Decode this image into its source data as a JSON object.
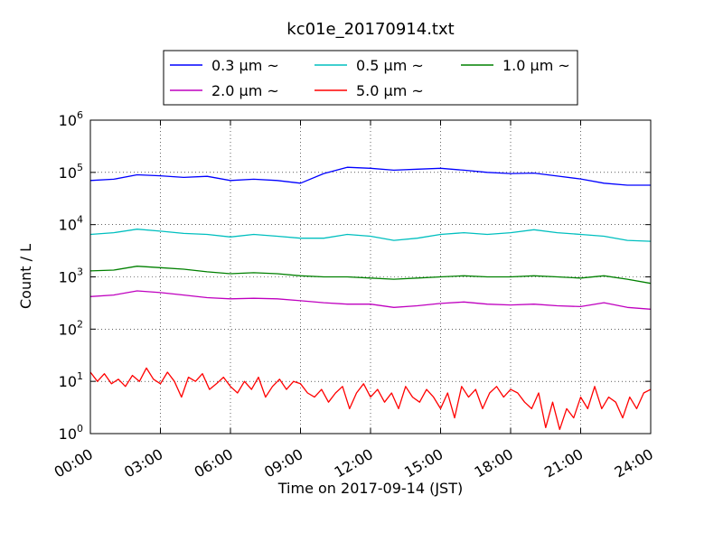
{
  "chart_data": {
    "type": "line",
    "title": "kc01e_20170914.txt",
    "xlabel": "Time on 2017-09-14 (JST)",
    "ylabel": "Count / L",
    "yscale": "log",
    "ylim": [
      1,
      1000000
    ],
    "xlim": [
      "00:00",
      "24:00"
    ],
    "grid": true,
    "legend_position": "top-center",
    "x_ticks": [
      "00:00",
      "03:00",
      "06:00",
      "09:00",
      "12:00",
      "15:00",
      "18:00",
      "21:00",
      "24:00"
    ],
    "y_ticks": [
      {
        "value": 1,
        "base": "10",
        "exp": "0"
      },
      {
        "value": 10,
        "base": "10",
        "exp": "1"
      },
      {
        "value": 100,
        "base": "10",
        "exp": "2"
      },
      {
        "value": 1000,
        "base": "10",
        "exp": "3"
      },
      {
        "value": 10000,
        "base": "10",
        "exp": "4"
      },
      {
        "value": 100000,
        "base": "10",
        "exp": "5"
      },
      {
        "value": 1000000,
        "base": "10",
        "exp": "6"
      }
    ],
    "series": [
      {
        "name": "0.3 μm ~",
        "color": "#0000ff",
        "points": [
          [
            0,
            70000
          ],
          [
            1,
            74000
          ],
          [
            2,
            90000
          ],
          [
            3,
            86000
          ],
          [
            4,
            80000
          ],
          [
            5,
            84000
          ],
          [
            6,
            70000
          ],
          [
            7,
            74000
          ],
          [
            8,
            70000
          ],
          [
            9,
            62000
          ],
          [
            10,
            95000
          ],
          [
            11,
            125000
          ],
          [
            12,
            120000
          ],
          [
            13,
            110000
          ],
          [
            14,
            115000
          ],
          [
            15,
            120000
          ],
          [
            16,
            110000
          ],
          [
            17,
            100000
          ],
          [
            18,
            95000
          ],
          [
            19,
            97000
          ],
          [
            20,
            85000
          ],
          [
            21,
            75000
          ],
          [
            22,
            62000
          ],
          [
            23,
            57000
          ],
          [
            24,
            57000
          ]
        ]
      },
      {
        "name": "0.5 μm ~",
        "color": "#00bfbf",
        "points": [
          [
            0,
            6500
          ],
          [
            1,
            7000
          ],
          [
            2,
            8200
          ],
          [
            3,
            7500
          ],
          [
            4,
            6800
          ],
          [
            5,
            6500
          ],
          [
            6,
            5800
          ],
          [
            7,
            6500
          ],
          [
            8,
            6000
          ],
          [
            9,
            5500
          ],
          [
            10,
            5500
          ],
          [
            11,
            6500
          ],
          [
            12,
            6000
          ],
          [
            13,
            5000
          ],
          [
            14,
            5500
          ],
          [
            15,
            6500
          ],
          [
            16,
            7000
          ],
          [
            17,
            6500
          ],
          [
            18,
            7000
          ],
          [
            19,
            8000
          ],
          [
            20,
            7000
          ],
          [
            21,
            6500
          ],
          [
            22,
            6000
          ],
          [
            23,
            5000
          ],
          [
            24,
            4800
          ]
        ]
      },
      {
        "name": "1.0 μm ~",
        "color": "#008000",
        "points": [
          [
            0,
            1300
          ],
          [
            1,
            1350
          ],
          [
            2,
            1600
          ],
          [
            3,
            1500
          ],
          [
            4,
            1400
          ],
          [
            5,
            1250
          ],
          [
            6,
            1150
          ],
          [
            7,
            1200
          ],
          [
            8,
            1150
          ],
          [
            9,
            1050
          ],
          [
            10,
            1000
          ],
          [
            11,
            1000
          ],
          [
            12,
            950
          ],
          [
            13,
            900
          ],
          [
            14,
            950
          ],
          [
            15,
            1000
          ],
          [
            16,
            1050
          ],
          [
            17,
            1000
          ],
          [
            18,
            1000
          ],
          [
            19,
            1050
          ],
          [
            20,
            1000
          ],
          [
            21,
            950
          ],
          [
            22,
            1050
          ],
          [
            23,
            900
          ],
          [
            24,
            750
          ]
        ]
      },
      {
        "name": "2.0 μm ~",
        "color": "#bf00bf",
        "points": [
          [
            0,
            420
          ],
          [
            1,
            450
          ],
          [
            2,
            540
          ],
          [
            3,
            500
          ],
          [
            4,
            450
          ],
          [
            5,
            400
          ],
          [
            6,
            380
          ],
          [
            7,
            390
          ],
          [
            8,
            380
          ],
          [
            9,
            350
          ],
          [
            10,
            320
          ],
          [
            11,
            300
          ],
          [
            12,
            300
          ],
          [
            13,
            260
          ],
          [
            14,
            280
          ],
          [
            15,
            310
          ],
          [
            16,
            330
          ],
          [
            17,
            300
          ],
          [
            18,
            290
          ],
          [
            19,
            300
          ],
          [
            20,
            280
          ],
          [
            21,
            270
          ],
          [
            22,
            320
          ],
          [
            23,
            260
          ],
          [
            24,
            240
          ]
        ]
      },
      {
        "name": "5.0 μm ~",
        "color": "#ff0000",
        "points": [
          [
            0,
            15
          ],
          [
            0.3,
            10
          ],
          [
            0.6,
            14
          ],
          [
            0.9,
            9
          ],
          [
            1.2,
            11
          ],
          [
            1.5,
            8
          ],
          [
            1.8,
            13
          ],
          [
            2.1,
            10
          ],
          [
            2.4,
            18
          ],
          [
            2.7,
            11
          ],
          [
            3.0,
            9
          ],
          [
            3.3,
            15
          ],
          [
            3.6,
            10
          ],
          [
            3.9,
            5
          ],
          [
            4.2,
            12
          ],
          [
            4.5,
            10
          ],
          [
            4.8,
            14
          ],
          [
            5.1,
            7
          ],
          [
            5.4,
            9
          ],
          [
            5.7,
            12
          ],
          [
            6.0,
            8
          ],
          [
            6.3,
            6
          ],
          [
            6.6,
            10
          ],
          [
            6.9,
            7
          ],
          [
            7.2,
            12
          ],
          [
            7.5,
            5
          ],
          [
            7.8,
            8
          ],
          [
            8.1,
            11
          ],
          [
            8.4,
            7
          ],
          [
            8.7,
            10
          ],
          [
            9.0,
            9
          ],
          [
            9.3,
            6
          ],
          [
            9.6,
            5
          ],
          [
            9.9,
            7
          ],
          [
            10.2,
            4
          ],
          [
            10.5,
            6
          ],
          [
            10.8,
            8
          ],
          [
            11.1,
            3
          ],
          [
            11.4,
            6
          ],
          [
            11.7,
            9
          ],
          [
            12.0,
            5
          ],
          [
            12.3,
            7
          ],
          [
            12.6,
            4
          ],
          [
            12.9,
            6
          ],
          [
            13.2,
            3
          ],
          [
            13.5,
            8
          ],
          [
            13.8,
            5
          ],
          [
            14.1,
            4
          ],
          [
            14.4,
            7
          ],
          [
            14.7,
            5
          ],
          [
            15.0,
            3
          ],
          [
            15.3,
            6
          ],
          [
            15.6,
            2
          ],
          [
            15.9,
            8
          ],
          [
            16.2,
            5
          ],
          [
            16.5,
            7
          ],
          [
            16.8,
            3
          ],
          [
            17.1,
            6
          ],
          [
            17.4,
            8
          ],
          [
            17.7,
            5
          ],
          [
            18.0,
            7
          ],
          [
            18.3,
            6
          ],
          [
            18.6,
            4
          ],
          [
            18.9,
            3
          ],
          [
            19.2,
            6
          ],
          [
            19.5,
            1.3
          ],
          [
            19.8,
            4
          ],
          [
            20.1,
            1.2
          ],
          [
            20.4,
            3
          ],
          [
            20.7,
            2
          ],
          [
            21.0,
            5
          ],
          [
            21.3,
            3
          ],
          [
            21.6,
            8
          ],
          [
            21.9,
            3
          ],
          [
            22.2,
            5
          ],
          [
            22.5,
            4
          ],
          [
            22.8,
            2
          ],
          [
            23.1,
            5
          ],
          [
            23.4,
            3
          ],
          [
            23.7,
            6
          ],
          [
            24.0,
            7
          ]
        ]
      }
    ]
  }
}
